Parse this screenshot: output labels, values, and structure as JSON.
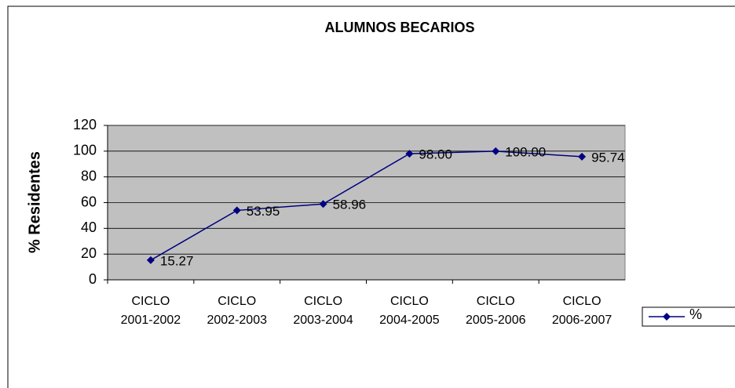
{
  "chart_data": {
    "type": "line",
    "title": "ALUMNOS BECARIOS",
    "y_label": "% Residentes",
    "categories": [
      "CICLO 2001-2002",
      "CICLO 2002-2003",
      "CICLO 2003-2004",
      "CICLO 2004-2005",
      "CICLO 2005-2006",
      "CICLO 2006-2007"
    ],
    "series": [
      {
        "name": "%",
        "color": "#000080",
        "values": [
          15.27,
          53.95,
          58.96,
          98.0,
          100.0,
          95.74
        ],
        "value_labels": [
          "15.27",
          "53.95",
          "58.96",
          "98.00",
          "100.00",
          "95.74"
        ]
      }
    ],
    "ylim": [
      0,
      120
    ],
    "yticks": [
      0,
      20,
      40,
      60,
      80,
      100,
      120
    ],
    "grid": true,
    "legend": "right"
  }
}
